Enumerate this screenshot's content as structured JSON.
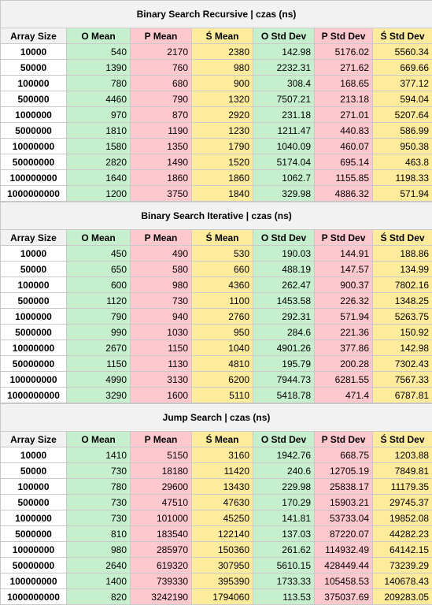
{
  "columns": [
    "Array Size",
    "O Mean",
    "P Mean",
    "Ś Mean",
    "O Std Dev",
    "P Std Dev",
    "Ś Std Dev"
  ],
  "colors": {
    "O": "#c6efce",
    "P": "#ffc7ce",
    "S": "#ffeb9c",
    "header": "#f2f2f2"
  },
  "sections": [
    {
      "title": "Binary Search Recursive | czas (ns)",
      "rows": [
        [
          "10000",
          "540",
          "2170",
          "2380",
          "142.98",
          "5176.02",
          "5560.34"
        ],
        [
          "50000",
          "1390",
          "760",
          "980",
          "2232.31",
          "271.62",
          "669.66"
        ],
        [
          "100000",
          "780",
          "680",
          "900",
          "308.4",
          "168.65",
          "377.12"
        ],
        [
          "500000",
          "4460",
          "790",
          "1320",
          "7507.21",
          "213.18",
          "594.04"
        ],
        [
          "1000000",
          "970",
          "870",
          "2920",
          "231.18",
          "271.01",
          "5207.64"
        ],
        [
          "5000000",
          "1810",
          "1190",
          "1230",
          "1211.47",
          "440.83",
          "586.99"
        ],
        [
          "10000000",
          "1580",
          "1350",
          "1790",
          "1040.09",
          "460.07",
          "950.38"
        ],
        [
          "50000000",
          "2820",
          "1490",
          "1520",
          "5174.04",
          "695.14",
          "463.8"
        ],
        [
          "100000000",
          "1640",
          "1860",
          "1860",
          "1062.7",
          "1155.85",
          "1198.33"
        ],
        [
          "1000000000",
          "1200",
          "3750",
          "1840",
          "329.98",
          "4886.32",
          "571.94"
        ]
      ]
    },
    {
      "title": "Binary Search Iterative | czas (ns)",
      "rows": [
        [
          "10000",
          "450",
          "490",
          "530",
          "190.03",
          "144.91",
          "188.86"
        ],
        [
          "50000",
          "650",
          "580",
          "660",
          "488.19",
          "147.57",
          "134.99"
        ],
        [
          "100000",
          "600",
          "980",
          "4360",
          "262.47",
          "900.37",
          "7802.16"
        ],
        [
          "500000",
          "1120",
          "730",
          "1100",
          "1453.58",
          "226.32",
          "1348.25"
        ],
        [
          "1000000",
          "790",
          "940",
          "2760",
          "292.31",
          "571.94",
          "5263.75"
        ],
        [
          "5000000",
          "990",
          "1030",
          "950",
          "284.6",
          "221.36",
          "150.92"
        ],
        [
          "10000000",
          "2670",
          "1150",
          "1040",
          "4901.26",
          "377.86",
          "142.98"
        ],
        [
          "50000000",
          "1150",
          "1130",
          "4810",
          "195.79",
          "200.28",
          "7302.43"
        ],
        [
          "100000000",
          "4990",
          "3130",
          "6200",
          "7944.73",
          "6281.55",
          "7567.33"
        ],
        [
          "1000000000",
          "3290",
          "1600",
          "5110",
          "5418.78",
          "471.4",
          "6787.81"
        ]
      ]
    },
    {
      "title": "Jump Search | czas (ns)",
      "rows": [
        [
          "10000",
          "1410",
          "5150",
          "3160",
          "1942.76",
          "668.75",
          "1203.88"
        ],
        [
          "50000",
          "730",
          "18180",
          "11420",
          "240.6",
          "12705.19",
          "7849.81"
        ],
        [
          "100000",
          "780",
          "29600",
          "13430",
          "229.98",
          "25838.17",
          "11179.35"
        ],
        [
          "500000",
          "730",
          "47510",
          "47630",
          "170.29",
          "15903.21",
          "29745.37"
        ],
        [
          "1000000",
          "730",
          "101000",
          "45250",
          "141.81",
          "53733.04",
          "19852.08"
        ],
        [
          "5000000",
          "810",
          "183540",
          "122140",
          "137.03",
          "87220.07",
          "44282.23"
        ],
        [
          "10000000",
          "980",
          "285970",
          "150360",
          "261.62",
          "114932.49",
          "64142.15"
        ],
        [
          "50000000",
          "2640",
          "619320",
          "307950",
          "5610.15",
          "428449.44",
          "73239.29"
        ],
        [
          "100000000",
          "1400",
          "739330",
          "395390",
          "1733.33",
          "105458.53",
          "140678.43"
        ],
        [
          "1000000000",
          "820",
          "3242190",
          "1794060",
          "113.53",
          "375037.69",
          "209283.05"
        ]
      ]
    }
  ]
}
